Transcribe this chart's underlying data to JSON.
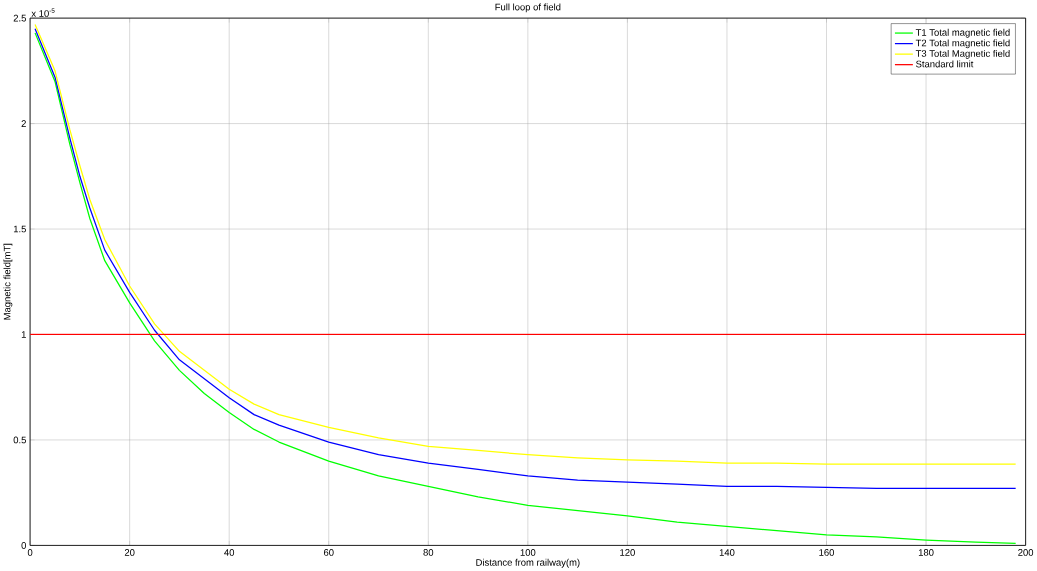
{
  "chart_data": {
    "type": "line",
    "title": "Full loop of field",
    "xlabel": "Distance from railway(m)",
    "ylabel": "Magnetic field[mT]",
    "annotations": [
      "x 10$^{-5}$"
    ],
    "xlim": [
      0,
      200
    ],
    "xticks": [
      0,
      20,
      40,
      60,
      80,
      100,
      120,
      140,
      160,
      180,
      200
    ],
    "ylim": [
      0,
      2.5
    ],
    "yticks": [
      0,
      0.5,
      1,
      1.5,
      2,
      2.5
    ],
    "grid": true,
    "legend": "top right",
    "line_style": "solid",
    "marker": "none",
    "series": [
      {
        "name": "T1 Total  magnetic field",
        "color": "#00ff00",
        "x": [
          1,
          5,
          8,
          10,
          12,
          15,
          20,
          25,
          30,
          35,
          40,
          45,
          50,
          60,
          70,
          80,
          90,
          100,
          110,
          120,
          130,
          140,
          150,
          160,
          170,
          180,
          190,
          198
        ],
        "values": [
          2.43,
          2.2,
          1.9,
          1.72,
          1.55,
          1.35,
          1.15,
          0.97,
          0.83,
          0.72,
          0.63,
          0.55,
          0.49,
          0.4,
          0.33,
          0.28,
          0.23,
          0.19,
          0.165,
          0.14,
          0.11,
          0.09,
          0.07,
          0.05,
          0.04,
          0.025,
          0.015,
          0.01
        ]
      },
      {
        "name": "T2 Total  magnetic field",
        "color": "#0000ff",
        "x": [
          1,
          5,
          8,
          10,
          12,
          15,
          20,
          25,
          30,
          35,
          40,
          45,
          50,
          60,
          70,
          80,
          90,
          100,
          110,
          120,
          130,
          140,
          150,
          160,
          170,
          180,
          198
        ],
        "values": [
          2.45,
          2.22,
          1.93,
          1.75,
          1.6,
          1.4,
          1.2,
          1.02,
          0.88,
          0.79,
          0.7,
          0.62,
          0.57,
          0.49,
          0.43,
          0.39,
          0.36,
          0.33,
          0.31,
          0.3,
          0.29,
          0.28,
          0.28,
          0.275,
          0.27,
          0.27,
          0.27
        ]
      },
      {
        "name": "T3 Total Magnetic field",
        "color": "#ffff00",
        "x": [
          1,
          5,
          8,
          10,
          12,
          15,
          20,
          25,
          30,
          35,
          40,
          45,
          50,
          60,
          70,
          80,
          90,
          100,
          110,
          120,
          130,
          140,
          150,
          160,
          170,
          180,
          198
        ],
        "values": [
          2.47,
          2.25,
          1.97,
          1.8,
          1.64,
          1.45,
          1.23,
          1.05,
          0.92,
          0.83,
          0.74,
          0.67,
          0.62,
          0.56,
          0.51,
          0.47,
          0.45,
          0.43,
          0.415,
          0.405,
          0.4,
          0.39,
          0.39,
          0.385,
          0.385,
          0.385,
          0.385
        ]
      },
      {
        "name": "Standard limit",
        "color": "#ff0000",
        "x": [
          0,
          200
        ],
        "values": [
          1,
          1
        ]
      }
    ]
  }
}
